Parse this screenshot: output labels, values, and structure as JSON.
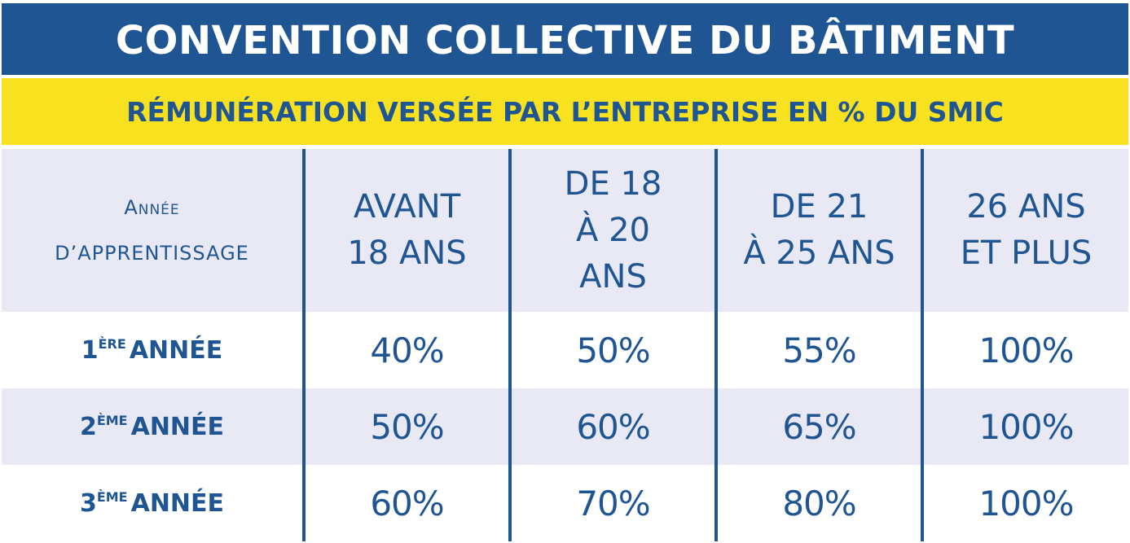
{
  "title": "CONVENTION COLLECTIVE DU BÂTIMENT",
  "subtitle": "RÉMUNÉRATION VERSÉE PAR L’ENTREPRISE EN % DU SMIC",
  "header": {
    "first_line1": "Année",
    "first_line2": "D’APPRENTISSAGE",
    "columns": [
      {
        "line1": "AVANT",
        "line2": "18 ANS",
        "line3": ""
      },
      {
        "line1": "DE 18",
        "line2": "À 20",
        "line3": "ANS"
      },
      {
        "line1": "DE 21",
        "line2": "À 25 ANS",
        "line3": ""
      },
      {
        "line1": "26 ANS",
        "line2": "ET PLUS",
        "line3": ""
      }
    ]
  },
  "rows": [
    {
      "num": "1",
      "sup": "ÈRE",
      "label": "ANNÉE",
      "values": [
        "40%",
        "50%",
        "55%",
        "100%"
      ]
    },
    {
      "num": "2",
      "sup": "ÈME",
      "label": "ANNÉE",
      "values": [
        "50%",
        "60%",
        "65%",
        "100%"
      ]
    },
    {
      "num": "3",
      "sup": "ÈME",
      "label": "ANNÉE",
      "values": [
        "60%",
        "70%",
        "80%",
        "100%"
      ]
    }
  ],
  "colors": {
    "primary_blue": "#1f5592",
    "yellow": "#f8e11f",
    "light_row": "#e8e9f4",
    "white": "#ffffff"
  }
}
